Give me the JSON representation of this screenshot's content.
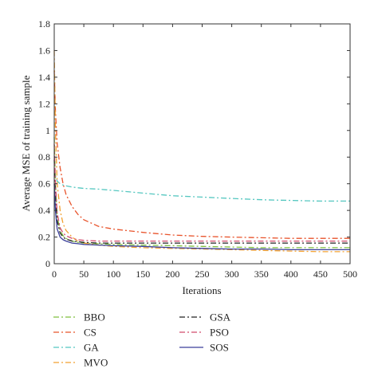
{
  "chart_data": {
    "type": "line",
    "title": "",
    "xlabel": "Iterations",
    "ylabel": "Average MSE of training sample",
    "xlim": [
      0,
      500
    ],
    "ylim": [
      0,
      1.8
    ],
    "xticks": [
      0,
      50,
      100,
      150,
      200,
      250,
      300,
      350,
      400,
      450,
      500
    ],
    "yticks": [
      0,
      0.2,
      0.4,
      0.6,
      0.8,
      1.0,
      1.2,
      1.4,
      1.6,
      1.8
    ],
    "ytick_labels": [
      "0",
      "0.2",
      "0.4",
      "0.6",
      "0.8",
      "1",
      "1.2",
      "1.4",
      "1.6",
      "1.8"
    ],
    "grid": false,
    "legend_position": "below",
    "x": [
      0,
      2,
      5,
      10,
      15,
      20,
      30,
      40,
      50,
      75,
      100,
      150,
      200,
      250,
      300,
      350,
      400,
      450,
      500
    ],
    "series": [
      {
        "name": "BBO",
        "color": "#7fbf3f",
        "dash": "dashdot",
        "values": [
          0.95,
          0.6,
          0.35,
          0.25,
          0.21,
          0.19,
          0.17,
          0.16,
          0.155,
          0.15,
          0.145,
          0.14,
          0.135,
          0.13,
          0.125,
          0.12,
          0.12,
          0.12,
          0.12
        ]
      },
      {
        "name": "CS",
        "color": "#e8532b",
        "dash": "dashdot",
        "values": [
          1.45,
          1.15,
          0.9,
          0.72,
          0.6,
          0.52,
          0.43,
          0.37,
          0.33,
          0.28,
          0.26,
          0.235,
          0.215,
          0.205,
          0.2,
          0.195,
          0.19,
          0.19,
          0.19
        ]
      },
      {
        "name": "GA",
        "color": "#55c7c0",
        "dash": "dashdot",
        "values": [
          0.72,
          0.66,
          0.62,
          0.6,
          0.59,
          0.585,
          0.575,
          0.57,
          0.565,
          0.56,
          0.55,
          0.53,
          0.51,
          0.5,
          0.49,
          0.48,
          0.475,
          0.47,
          0.47
        ]
      },
      {
        "name": "MVO",
        "color": "#f2a030",
        "dash": "dashdot",
        "values": [
          1.6,
          1.0,
          0.6,
          0.4,
          0.3,
          0.25,
          0.2,
          0.17,
          0.155,
          0.14,
          0.13,
          0.12,
          0.115,
          0.11,
          0.105,
          0.1,
          0.095,
          0.09,
          0.09
        ]
      },
      {
        "name": "GSA",
        "color": "#222222",
        "dash": "dashdot",
        "values": [
          0.78,
          0.5,
          0.32,
          0.23,
          0.2,
          0.185,
          0.17,
          0.165,
          0.16,
          0.155,
          0.155,
          0.155,
          0.155,
          0.155,
          0.155,
          0.155,
          0.155,
          0.155,
          0.155
        ]
      },
      {
        "name": "PSO",
        "color": "#d24a6c",
        "dash": "dashdot",
        "values": [
          0.9,
          0.6,
          0.38,
          0.27,
          0.23,
          0.21,
          0.19,
          0.18,
          0.175,
          0.17,
          0.17,
          0.17,
          0.17,
          0.17,
          0.17,
          0.17,
          0.17,
          0.17,
          0.17
        ]
      },
      {
        "name": "SOS",
        "color": "#3a3f9a",
        "dash": "solid",
        "values": [
          0.6,
          0.4,
          0.26,
          0.2,
          0.18,
          0.17,
          0.155,
          0.15,
          0.145,
          0.14,
          0.135,
          0.13,
          0.12,
          0.115,
          0.11,
          0.11,
          0.105,
          0.105,
          0.105
        ]
      }
    ]
  }
}
